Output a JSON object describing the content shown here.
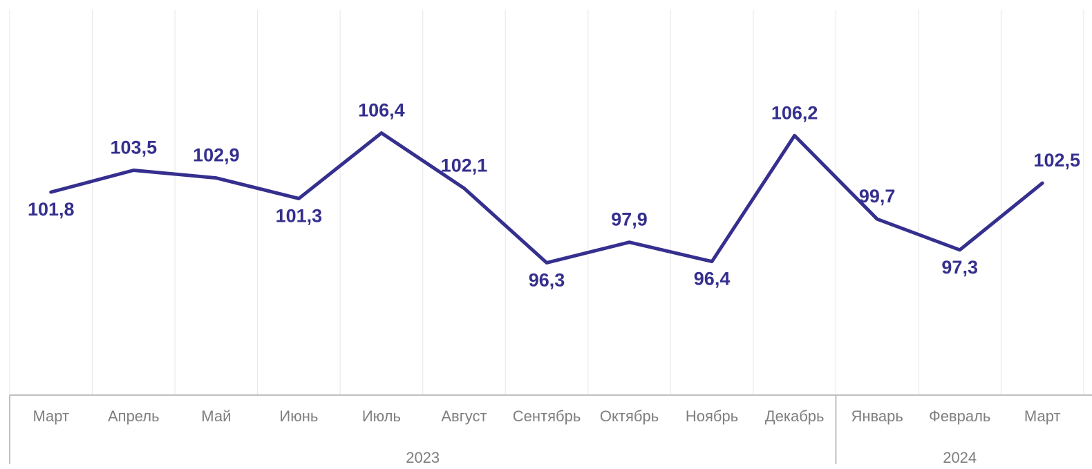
{
  "chart_data": {
    "type": "line",
    "categories": [
      "Март",
      "Апрель",
      "Май",
      "Июнь",
      "Июль",
      "Август",
      "Сентябрь",
      "Октябрь",
      "Ноябрь",
      "Декабрь",
      "Январь",
      "Февраль",
      "Март"
    ],
    "groups": [
      {
        "label": "2023",
        "count": 10
      },
      {
        "label": "2024",
        "count": 3
      }
    ],
    "series": [
      {
        "values": [
          101.8,
          103.5,
          102.9,
          101.3,
          106.4,
          102.1,
          96.3,
          97.9,
          96.4,
          106.2,
          99.7,
          97.3,
          102.5
        ],
        "labels": [
          "101,8",
          "103,5",
          "102,9",
          "101,3",
          "106,4",
          "102,1",
          "96,3",
          "97,9",
          "96,4",
          "106,2",
          "99,7",
          "97,3",
          "102,5"
        ],
        "color": "#352f8e"
      }
    ],
    "ylim": [
      86,
      116
    ],
    "grid": "vertical"
  }
}
